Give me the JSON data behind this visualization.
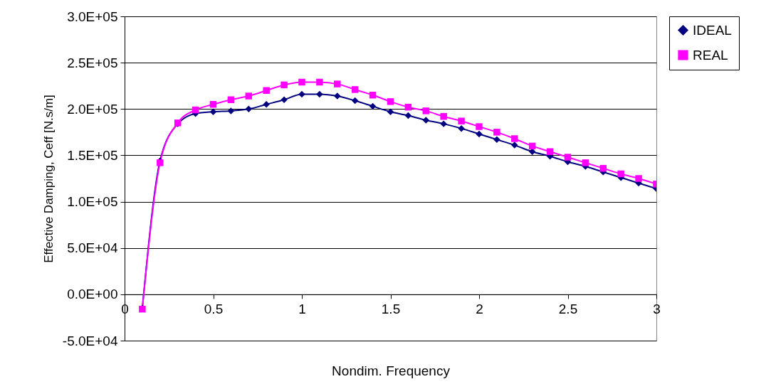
{
  "chart_data": {
    "type": "line",
    "xlabel": "Nondim. Frequency",
    "ylabel": "Effective Damping, Ceff [N.s/m]",
    "x": [
      0.1,
      0.2,
      0.3,
      0.4,
      0.5,
      0.6,
      0.7,
      0.8,
      0.9,
      1.0,
      1.1,
      1.2,
      1.3,
      1.4,
      1.5,
      1.6,
      1.7,
      1.8,
      1.9,
      2.0,
      2.1,
      2.2,
      2.3,
      2.4,
      2.5,
      2.6,
      2.7,
      2.8,
      2.9,
      3.0
    ],
    "series": [
      {
        "name": "IDEAL",
        "color": "#000080",
        "marker": "diamond",
        "values": [
          -15000,
          144000,
          184000,
          195000,
          197000,
          198000,
          200000,
          205000,
          210000,
          216000,
          216000,
          214000,
          209000,
          203000,
          197000,
          193000,
          188000,
          184000,
          179000,
          173000,
          167000,
          161000,
          154000,
          149000,
          143000,
          138000,
          132000,
          126000,
          120000,
          114000
        ]
      },
      {
        "name": "REAL",
        "color": "#ff00ff",
        "marker": "square",
        "values": [
          -16000,
          142000,
          185000,
          199000,
          205000,
          210000,
          214000,
          220000,
          226000,
          229000,
          229000,
          227000,
          221000,
          215000,
          208000,
          202000,
          198000,
          192000,
          187000,
          181000,
          175000,
          168000,
          160000,
          154000,
          148000,
          142000,
          136000,
          130000,
          125000,
          119000
        ]
      }
    ],
    "xlim": [
      0,
      3
    ],
    "xticks": [
      0,
      0.5,
      1,
      1.5,
      2,
      2.5,
      3
    ],
    "ylim": [
      -50000,
      300000
    ],
    "yticks": [
      {
        "value": -50000,
        "label": "-5.0E+04"
      },
      {
        "value": 0,
        "label": "0.0E+00"
      },
      {
        "value": 50000,
        "label": "5.0E+04"
      },
      {
        "value": 100000,
        "label": "1.0E+05"
      },
      {
        "value": 150000,
        "label": "1.5E+05"
      },
      {
        "value": 200000,
        "label": "2.0E+05"
      },
      {
        "value": 250000,
        "label": "2.5E+05"
      },
      {
        "value": 300000,
        "label": "3.0E+05"
      }
    ],
    "grid": "y",
    "legend": "right",
    "line_style": "solid"
  }
}
